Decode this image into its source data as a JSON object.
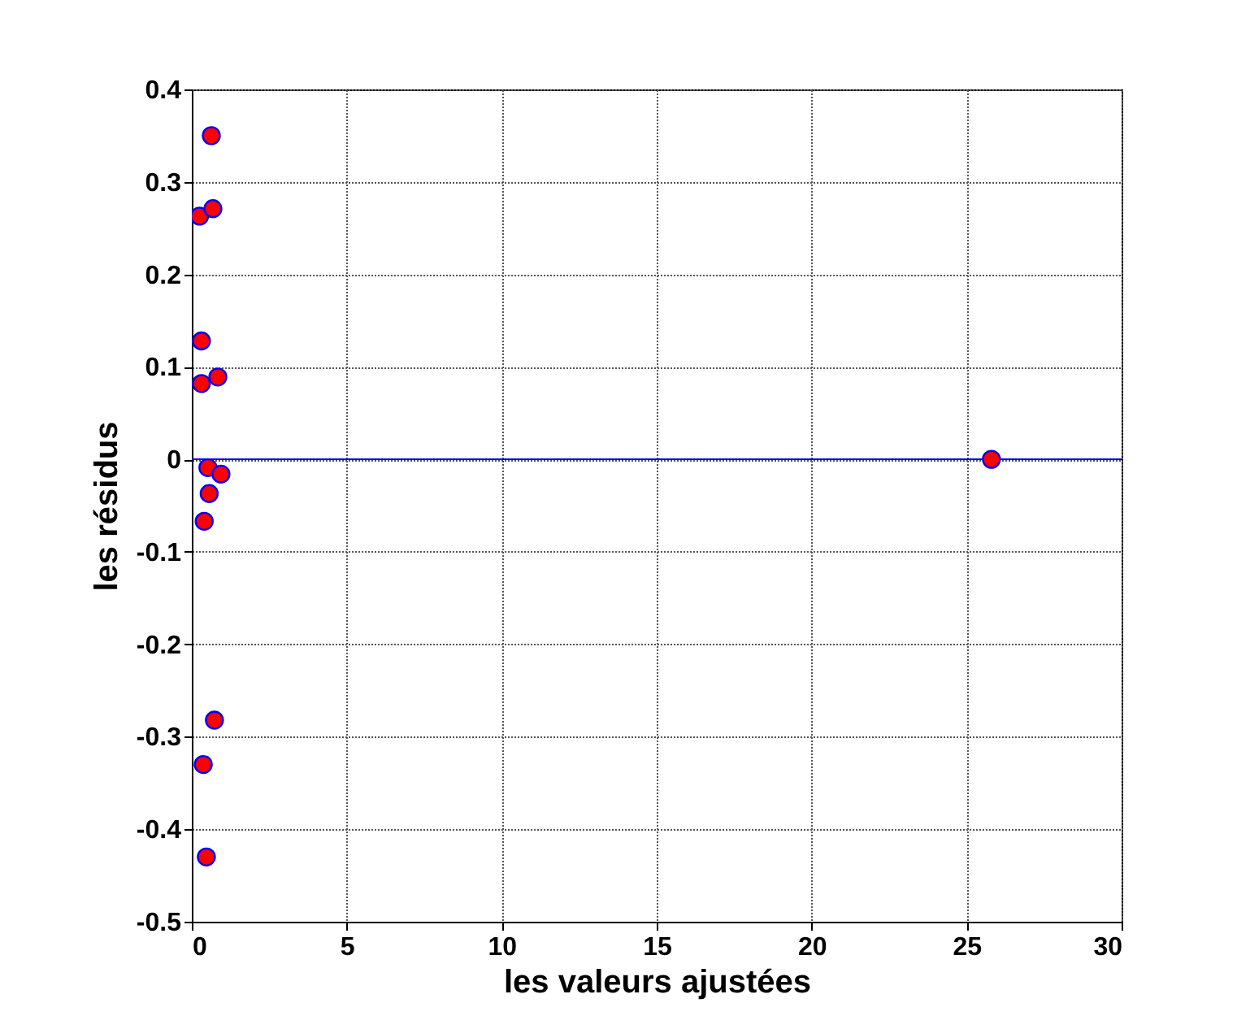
{
  "chart_data": {
    "type": "scatter",
    "xlabel": "les valeurs ajustées",
    "ylabel": "les résidus",
    "series": [
      {
        "color": "#ff0000",
        "x": [
          0.63,
          0.25,
          0.68,
          0.31,
          0.31,
          0.84,
          0.52,
          0.94,
          0.56,
          0.4,
          0.73,
          0.37,
          0.47,
          25.8
        ],
        "values": [
          0.35,
          0.263,
          0.271,
          0.128,
          0.082,
          0.089,
          -0.009,
          -0.016,
          -0.037,
          -0.067,
          -0.282,
          -0.33,
          -0.43,
          0
        ]
      }
    ],
    "marker": "circle",
    "grid": true,
    "xlim": [
      0,
      30
    ],
    "xticks": [
      0,
      5,
      10,
      15,
      20,
      25,
      30
    ],
    "ylim": [
      -0.5,
      0.4
    ],
    "yticks": [
      -0.5,
      -0.4,
      -0.3,
      -0.2,
      -0.1,
      0,
      0.1,
      0.2,
      0.3,
      0.4
    ],
    "ref_lines": [
      {
        "axis": "y",
        "value": 0,
        "color": "#0000ff"
      }
    ]
  }
}
